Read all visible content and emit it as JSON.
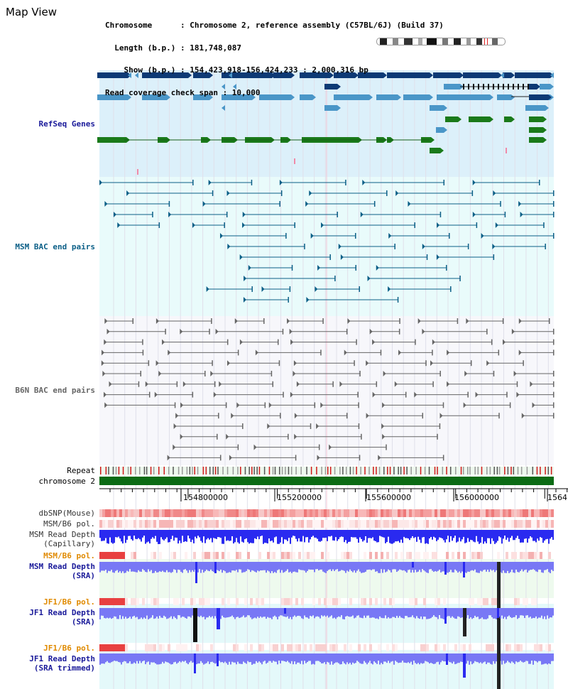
{
  "page": {
    "title": "Map View"
  },
  "info": {
    "chromosome": "Chromosome      : Chromosome 2, reference assembly (C57BL/6J) (Build 37)",
    "length": "  Length (b.p.) : 181,748,087",
    "show": "    Show (b.p.) : 154,423,918-156,424,233 : 2,000,316 bp",
    "coverage": "Read coverage check span : 10,000"
  },
  "tracks": {
    "refseq": "RefSeq Genes",
    "msm_bac": "MSM BAC end pairs",
    "b6n_bac": "B6N BAC end pairs",
    "repeat": "Repeat",
    "chromosome": "chromosome 2",
    "dbsnp": "dbSNP(Mouse)",
    "msm_b6_pol_1": "MSM/B6 pol.",
    "msm_depth_cap_1": "MSM Read Depth",
    "msm_depth_cap_2": "(Capillary)",
    "msm_b6_pol_2": "MSM/B6 pol.",
    "msm_depth_sra_1": "MSM Read Depth",
    "msm_depth_sra_2": "(SRA)",
    "jf1_b6_pol_1": "JF1/B6 pol.",
    "jf1_depth_sra_1": "JF1 Read Depth",
    "jf1_depth_sra_2": "(SRA)",
    "jf1_b6_pol_2": "JF1/B6 pol.",
    "jf1_depth_trim_1": "JF1 Read Depth",
    "jf1_depth_trim_2": "(SRA trimmed)"
  },
  "axis": {
    "ticks": [
      "154800000",
      "155200000",
      "155600000",
      "156000000",
      "1564"
    ]
  },
  "colors": {
    "refseq_dark": "#0d3a75",
    "refseq_light": "#4a96c8",
    "refseq_green": "#1a7a1a",
    "msm_bac": "#0b5f87",
    "b6n_bac": "#666666",
    "chrom_bar": "#0b6b14",
    "depth_blue": "#2a2af0",
    "depth_light": "#7878f5",
    "pol_red": "#e03030"
  }
}
